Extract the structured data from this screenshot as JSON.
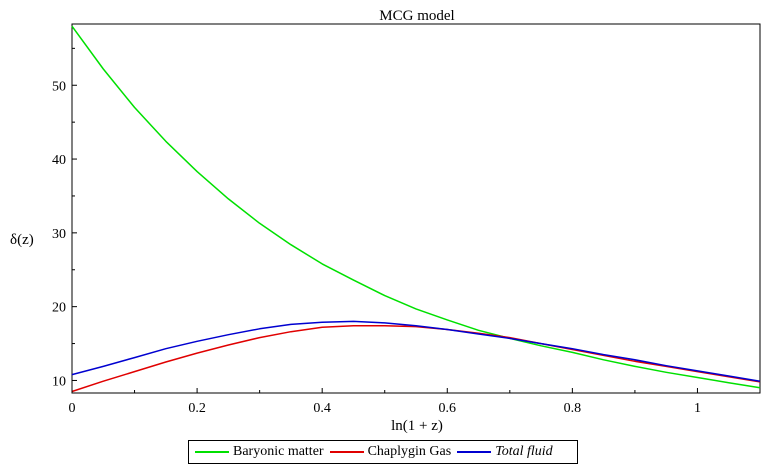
{
  "chart_data": {
    "type": "line",
    "title": "MCG model",
    "xlabel": "ln(1 + z)",
    "ylabel": "δ(z)",
    "xlim": [
      0,
      1.1
    ],
    "ylim": [
      8.3,
      58.3
    ],
    "xticks": [
      0,
      0.2,
      0.4,
      0.6,
      0.8,
      1
    ],
    "xtick_labels": [
      "0",
      "0.2",
      "0.4",
      "0.6",
      "0.8",
      "1"
    ],
    "yticks": [
      10,
      20,
      30,
      40,
      50
    ],
    "ytick_labels": [
      "10",
      "20",
      "30",
      "40",
      "50"
    ],
    "grid": false,
    "legend_position": "bottom",
    "series": [
      {
        "name": "Baryonic matter",
        "color": "#00e000",
        "x": [
          0,
          0.05,
          0.1,
          0.15,
          0.2,
          0.25,
          0.3,
          0.35,
          0.4,
          0.45,
          0.5,
          0.55,
          0.6,
          0.65,
          0.7,
          0.75,
          0.8,
          0.85,
          0.9,
          0.95,
          1.0,
          1.05,
          1.1
        ],
        "y": [
          58.0,
          52.2,
          47.0,
          42.4,
          38.3,
          34.6,
          31.3,
          28.4,
          25.8,
          23.6,
          21.5,
          19.7,
          18.2,
          16.8,
          15.7,
          14.7,
          13.8,
          12.8,
          11.9,
          11.1,
          10.4,
          9.7,
          9.0
        ]
      },
      {
        "name": "Chaplygin Gas",
        "color": "#e00000",
        "x": [
          0,
          0.05,
          0.1,
          0.15,
          0.2,
          0.25,
          0.3,
          0.35,
          0.4,
          0.45,
          0.5,
          0.55,
          0.6,
          0.65,
          0.7,
          0.75,
          0.8,
          0.85,
          0.9,
          0.95,
          1.0,
          1.05,
          1.1
        ],
        "y": [
          8.5,
          9.9,
          11.2,
          12.5,
          13.7,
          14.8,
          15.8,
          16.6,
          17.2,
          17.4,
          17.4,
          17.3,
          16.9,
          16.4,
          15.8,
          15.0,
          14.2,
          13.4,
          12.6,
          11.9,
          11.2,
          10.5,
          9.8
        ]
      },
      {
        "name": "Total fluid",
        "color": "#0000d0",
        "x": [
          0,
          0.05,
          0.1,
          0.15,
          0.2,
          0.25,
          0.3,
          0.35,
          0.4,
          0.45,
          0.5,
          0.55,
          0.6,
          0.65,
          0.7,
          0.75,
          0.8,
          0.85,
          0.9,
          0.95,
          1.0,
          1.05,
          1.1
        ],
        "y": [
          10.8,
          11.9,
          13.1,
          14.3,
          15.3,
          16.2,
          17.0,
          17.6,
          17.9,
          18.0,
          17.8,
          17.4,
          16.9,
          16.3,
          15.7,
          15.0,
          14.3,
          13.5,
          12.8,
          12.0,
          11.3,
          10.6,
          9.9
        ]
      }
    ]
  }
}
